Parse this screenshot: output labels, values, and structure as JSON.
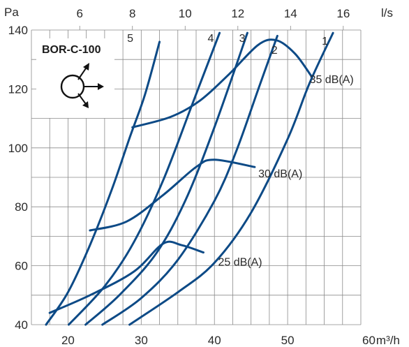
{
  "chart_data": {
    "type": "line",
    "model_label": "BOR-C-100",
    "y_unit": "Pa",
    "x_unit": "m³/h",
    "x2_unit": "l/s",
    "xlim": [
      15,
      60
    ],
    "ylim": [
      40,
      140
    ],
    "x_ticks": [
      "20",
      "30",
      "40",
      "50",
      "60"
    ],
    "y_ticks": [
      "40",
      "60",
      "80",
      "100",
      "120",
      "140"
    ],
    "x2_ticks": [
      "6",
      "8",
      "10",
      "12",
      "14",
      "16"
    ],
    "x2_tick_values": [
      21.6,
      28.8,
      36,
      43.2,
      50.4,
      57.6
    ],
    "series": [
      {
        "name": "1",
        "label_at": [
          55.1,
          135
        ],
        "points": [
          [
            28.4,
            40
          ],
          [
            35,
            51
          ],
          [
            40,
            61
          ],
          [
            45,
            78
          ],
          [
            50,
            103
          ],
          [
            53,
            122
          ],
          [
            56.2,
            139
          ]
        ]
      },
      {
        "name": "2",
        "label_at": [
          48.2,
          132
        ],
        "points": [
          [
            24.7,
            40
          ],
          [
            30,
            49
          ],
          [
            35,
            62
          ],
          [
            40,
            82
          ],
          [
            43,
            99
          ],
          [
            46,
            120
          ],
          [
            48.6,
            138
          ]
        ]
      },
      {
        "name": "3",
        "label_at": [
          43.8,
          136
        ],
        "points": [
          [
            22.4,
            40
          ],
          [
            27,
            50
          ],
          [
            32,
            64
          ],
          [
            36,
            82
          ],
          [
            40,
            107
          ],
          [
            44.5,
            139
          ]
        ]
      },
      {
        "name": "4",
        "label_at": [
          39.5,
          136
        ],
        "points": [
          [
            20.1,
            40
          ],
          [
            25,
            53
          ],
          [
            29,
            68
          ],
          [
            33,
            89
          ],
          [
            37,
            115
          ],
          [
            40.7,
            139
          ]
        ]
      },
      {
        "name": "5",
        "label_at": [
          28.5,
          136
        ],
        "points": [
          [
            17,
            40
          ],
          [
            20,
            51
          ],
          [
            23,
            67
          ],
          [
            26,
            86
          ],
          [
            28.5,
            104
          ],
          [
            30.5,
            118
          ],
          [
            32.5,
            136
          ]
        ]
      }
    ],
    "noise_lines": [
      {
        "label": "25 dB(A)",
        "label_at": [
          40.5,
          60
        ],
        "points": [
          [
            17.5,
            44
          ],
          [
            23,
            50
          ],
          [
            29,
            58
          ],
          [
            33,
            67.5
          ],
          [
            35.5,
            67
          ],
          [
            38.5,
            64.5
          ]
        ]
      },
      {
        "label": "30 dB(A)",
        "label_at": [
          46,
          50
        ],
        "points": [
          [
            23,
            72
          ],
          [
            28,
            75
          ],
          [
            33,
            84
          ],
          [
            37.5,
            93.5
          ],
          [
            40,
            96
          ],
          [
            45.5,
            93.5
          ]
        ],
        "label_at_y": 90
      },
      {
        "label": "35 dB(A)",
        "label_at": [
          53,
          120
        ],
        "points": [
          [
            28.8,
            107
          ],
          [
            34,
            110.5
          ],
          [
            38,
            116
          ],
          [
            42,
            125
          ],
          [
            46,
            135
          ],
          [
            48.5,
            136.5
          ],
          [
            51,
            132
          ],
          [
            53.2,
            124.5
          ]
        ],
        "label_at_y": 122
      }
    ]
  }
}
